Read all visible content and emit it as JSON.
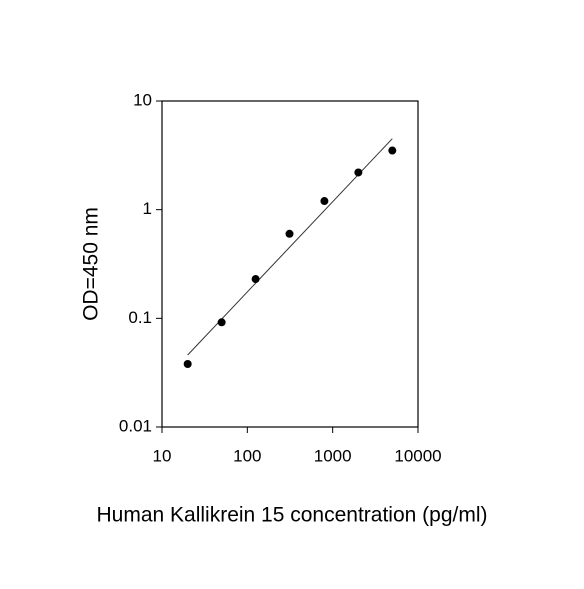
{
  "chart_data": {
    "type": "scatter",
    "xlabel": "Human Kallikrein 15 concentration (pg/ml)",
    "ylabel": "OD=450 nm",
    "x": [
      20,
      50,
      125,
      312,
      800,
      2000,
      5000
    ],
    "values": [
      0.038,
      0.092,
      0.23,
      0.6,
      1.2,
      2.2,
      3.5
    ],
    "color": "#000000",
    "fit_line": {
      "x": [
        20,
        5000
      ],
      "values": [
        0.046,
        4.5
      ]
    },
    "xscale": "log",
    "yscale": "log",
    "xlim": [
      10,
      10000
    ],
    "ylim": [
      0.01,
      10
    ],
    "xticks": [
      10,
      100,
      1000,
      10000
    ],
    "yticks": [
      0.01,
      0.1,
      1,
      10
    ]
  }
}
